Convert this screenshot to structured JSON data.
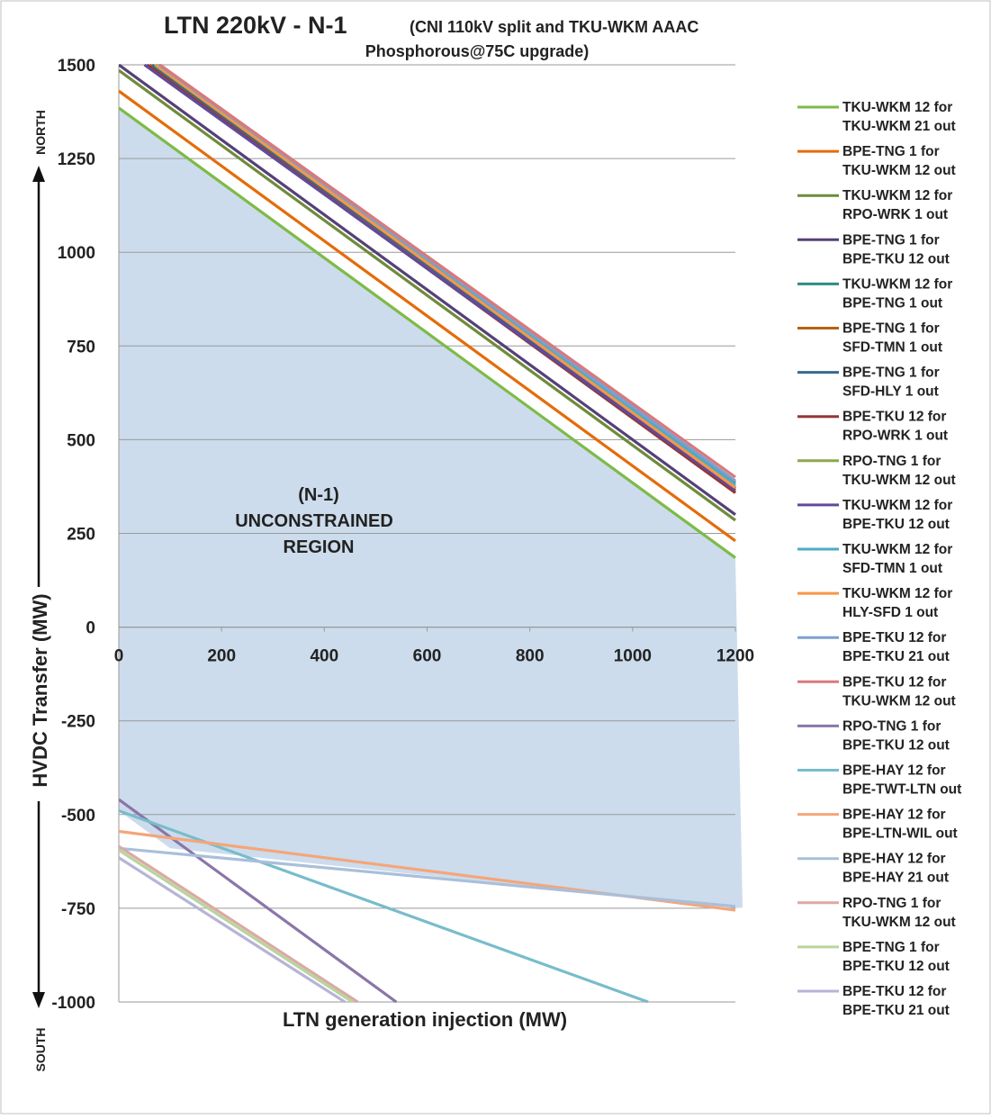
{
  "chart_data": {
    "type": "line",
    "title_main": "LTN 220kV - N-1",
    "title_sub_line1": "(CNI 110kV split and TKU-WKM AAAC",
    "title_sub_line2": "Phosphorous@75C upgrade)",
    "xlabel": "LTN generation injection (MW)",
    "ylabel": "HVDC Transfer (MW)",
    "north_label": "NORTH",
    "south_label": "SOUTH",
    "region_label_lines": [
      "(N-1)",
      "UNCONSTRAINED",
      "REGION"
    ],
    "xlim": [
      0,
      1200
    ],
    "ylim": [
      -1000,
      1500
    ],
    "x_ticks": [
      "0",
      "200",
      "400",
      "600",
      "800",
      "1000",
      "1200"
    ],
    "y_ticks": [
      "1500",
      "1250",
      "1000",
      "750",
      "500",
      "250",
      "0",
      "-250",
      "-500",
      "-750",
      "-1000"
    ],
    "grid": "horizontal",
    "legend_position": "right",
    "unconstrained_region_color": "#ccdcec",
    "unconstrained_region_boundary": {
      "upper": [
        [
          0,
          1385
        ],
        [
          1200,
          185
        ]
      ],
      "lower": [
        [
          0,
          -490
        ],
        [
          100,
          -590
        ],
        [
          1200,
          -750
        ]
      ]
    },
    "series": [
      {
        "line1": "TKU-WKM 12 for",
        "line2": "TKU-WKM 21 out",
        "color": "#7dbb47",
        "points": [
          [
            0,
            1385
          ],
          [
            1200,
            185
          ]
        ]
      },
      {
        "line1": "BPE-TNG 1 for",
        "line2": "TKU-WKM 12 out",
        "color": "#e46c0a",
        "points": [
          [
            0,
            1430
          ],
          [
            1200,
            230
          ]
        ]
      },
      {
        "line1": "TKU-WKM 12 for",
        "line2": "RPO-WRK 1 out",
        "color": "#6f8b3a",
        "points": [
          [
            0,
            1485
          ],
          [
            1200,
            285
          ]
        ]
      },
      {
        "line1": "BPE-TNG 1 for",
        "line2": "BPE-TKU 12 out",
        "color": "#554078",
        "points": [
          [
            0,
            1500
          ],
          [
            1200,
            300
          ]
        ]
      },
      {
        "line1": "TKU-WKM 12 for",
        "line2": "BPE-TNG 1 out",
        "color": "#2f8a86",
        "points": [
          [
            60,
            1500
          ],
          [
            1200,
            385
          ]
        ]
      },
      {
        "line1": "BPE-TNG 1 for",
        "line2": "SFD-TMN 1 out",
        "color": "#b8620f",
        "points": [
          [
            60,
            1500
          ],
          [
            1200,
            360
          ]
        ]
      },
      {
        "line1": "BPE-TNG 1 for",
        "line2": "SFD-HLY 1 out",
        "color": "#376a8e",
        "points": [
          [
            65,
            1500
          ],
          [
            1200,
            370
          ]
        ]
      },
      {
        "line1": "BPE-TKU 12 for",
        "line2": "RPO-WRK 1 out",
        "color": "#943634",
        "points": [
          [
            55,
            1500
          ],
          [
            1200,
            358
          ]
        ]
      },
      {
        "line1": "RPO-TNG 1 for",
        "line2": "TKU-WKM 12 out",
        "color": "#8ea84c",
        "points": [
          [
            70,
            1500
          ],
          [
            1200,
            375
          ]
        ]
      },
      {
        "line1": "TKU-WKM 12 for",
        "line2": "BPE-TKU 12 out",
        "color": "#604a9b",
        "points": [
          [
            50,
            1500
          ],
          [
            1200,
            365
          ]
        ]
      },
      {
        "line1": "TKU-WKM 12 for",
        "line2": "SFD-TMN 1 out",
        "color": "#4bacc6",
        "points": [
          [
            75,
            1500
          ],
          [
            1200,
            380
          ]
        ]
      },
      {
        "line1": "TKU-WKM 12 for",
        "line2": "HLY-SFD 1 out",
        "color": "#f79646",
        "points": [
          [
            72,
            1500
          ],
          [
            1200,
            372
          ]
        ]
      },
      {
        "line1": "BPE-TKU 12 for",
        "line2": "BPE-TKU 21 out",
        "color": "#7f9fcf",
        "points": [
          [
            78,
            1500
          ],
          [
            1200,
            390
          ]
        ]
      },
      {
        "line1": "BPE-TKU 12 for",
        "line2": "TKU-WKM 12 out",
        "color": "#d9797b",
        "points": [
          [
            80,
            1500
          ],
          [
            1200,
            400
          ]
        ]
      },
      {
        "line1": "RPO-TNG 1 for",
        "line2": "BPE-TKU 12 out",
        "color": "#8a76a8",
        "points": [
          [
            0,
            -460
          ],
          [
            540,
            -1000
          ]
        ]
      },
      {
        "line1": "BPE-HAY 12 for",
        "line2": "BPE-TWT-LTN out",
        "color": "#78bccb",
        "points": [
          [
            0,
            -490
          ],
          [
            1030,
            -1000
          ]
        ]
      },
      {
        "line1": "BPE-HAY 12 for",
        "line2": "BPE-LTN-WIL out",
        "color": "#f4a67a",
        "points": [
          [
            0,
            -545
          ],
          [
            1200,
            -755
          ]
        ]
      },
      {
        "line1": "BPE-HAY 12 for",
        "line2": "BPE-HAY 21 out",
        "color": "#a9bfda",
        "points": [
          [
            0,
            -590
          ],
          [
            1200,
            -745
          ]
        ]
      },
      {
        "line1": "RPO-TNG 1 for",
        "line2": "TKU-WKM 12 out",
        "color": "#dba9a4",
        "points": [
          [
            0,
            -585
          ],
          [
            465,
            -1000
          ]
        ]
      },
      {
        "line1": "BPE-TNG 1 for",
        "line2": "BPE-TKU 12 out",
        "color": "#b8d59c",
        "points": [
          [
            0,
            -595
          ],
          [
            455,
            -1000
          ]
        ]
      },
      {
        "line1": "BPE-TKU 12 for",
        "line2": "BPE-TKU 21 out",
        "color": "#b7b4d6",
        "points": [
          [
            0,
            -615
          ],
          [
            440,
            -1000
          ]
        ]
      }
    ]
  }
}
